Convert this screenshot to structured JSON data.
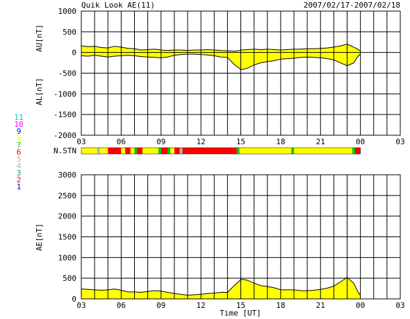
{
  "header": {
    "title": "Quik Look AE(11)",
    "date_range": "2007/02/17-2007/02/18"
  },
  "station_legend": [
    {
      "label": "11",
      "color": "#00c8c8"
    },
    {
      "label": "10",
      "color": "#ff00ff"
    },
    {
      "label": "9",
      "color": "#0000ff"
    },
    {
      "label": "8",
      "color": "#ffff00"
    },
    {
      "label": "7",
      "color": "#00c800"
    },
    {
      "label": "6",
      "color": "#ff0000"
    },
    {
      "label": "5",
      "color": "#b4b4b4"
    },
    {
      "label": "4",
      "color": "#b4b4b4"
    },
    {
      "label": "3",
      "color": "#00a0a0"
    },
    {
      "label": "2",
      "color": "#c80064"
    },
    {
      "label": "1",
      "color": "#0000c8"
    }
  ],
  "chart_data": [
    {
      "type": "area",
      "ylabel_upper": "AU[nT]",
      "ylabel_lower": "AL[nT]",
      "xlabel": "",
      "ylim": [
        -2000,
        1000
      ],
      "yticks": [
        "1000",
        "500",
        "0",
        "-500",
        "-1000",
        "-1500",
        "-2000"
      ],
      "xlim": [
        3,
        27
      ],
      "xticks": [
        "03",
        "06",
        "09",
        "12",
        "15",
        "18",
        "21",
        "00",
        "03"
      ],
      "grid": true,
      "x": [
        3.0,
        3.5,
        4.0,
        4.5,
        5.0,
        5.5,
        6.0,
        6.5,
        7.0,
        7.5,
        8.0,
        8.5,
        9.0,
        9.5,
        10.0,
        10.5,
        11.0,
        11.5,
        12.0,
        12.5,
        13.0,
        13.5,
        14.0,
        14.5,
        14.8,
        15.0,
        15.5,
        16.0,
        16.5,
        17.0,
        17.5,
        18.0,
        18.5,
        19.0,
        19.5,
        20.0,
        20.5,
        21.0,
        21.5,
        22.0,
        22.5,
        23.0,
        23.5,
        23.8,
        24.0
      ],
      "series": [
        {
          "values": [
            160,
            140,
            150,
            120,
            110,
            150,
            130,
            100,
            90,
            60,
            70,
            80,
            60,
            50,
            60,
            60,
            50,
            60,
            60,
            70,
            60,
            50,
            40,
            30,
            40,
            60,
            70,
            80,
            70,
            80,
            70,
            60,
            70,
            80,
            80,
            90,
            90,
            100,
            110,
            130,
            160,
            200,
            130,
            80,
            40
          ]
        },
        {
          "values": [
            -80,
            -90,
            -70,
            -90,
            -110,
            -90,
            -80,
            -70,
            -80,
            -100,
            -110,
            -120,
            -130,
            -110,
            -70,
            -50,
            -40,
            -40,
            -50,
            -60,
            -80,
            -110,
            -120,
            -290,
            -360,
            -420,
            -380,
            -300,
            -250,
            -220,
            -200,
            -160,
            -150,
            -140,
            -120,
            -110,
            -120,
            -130,
            -150,
            -180,
            -250,
            -320,
            -250,
            -100,
            -40
          ]
        }
      ]
    },
    {
      "type": "area",
      "ylabel": "AE[nT]",
      "xlabel": "Time [UT]",
      "ylim": [
        0,
        3000
      ],
      "yticks": [
        "3000",
        "2500",
        "2000",
        "1500",
        "1000",
        "500",
        "0"
      ],
      "xlim": [
        3,
        27
      ],
      "xticks": [
        "03",
        "06",
        "09",
        "12",
        "15",
        "18",
        "21",
        "00",
        "03"
      ],
      "grid": true,
      "x": [
        3.0,
        3.5,
        4.0,
        4.5,
        5.0,
        5.5,
        6.0,
        6.5,
        7.0,
        7.5,
        8.0,
        8.5,
        9.0,
        9.5,
        10.0,
        10.5,
        11.0,
        11.5,
        12.0,
        12.5,
        13.0,
        13.5,
        14.0,
        14.5,
        14.8,
        15.0,
        15.5,
        16.0,
        16.5,
        17.0,
        17.5,
        18.0,
        18.5,
        19.0,
        19.5,
        20.0,
        20.5,
        21.0,
        21.5,
        22.0,
        22.5,
        23.0,
        23.5,
        23.8,
        24.0
      ],
      "series": [
        {
          "values": [
            240,
            230,
            220,
            210,
            220,
            240,
            210,
            170,
            170,
            160,
            180,
            200,
            190,
            160,
            130,
            110,
            90,
            100,
            110,
            130,
            140,
            160,
            160,
            320,
            400,
            480,
            450,
            380,
            320,
            300,
            270,
            220,
            220,
            220,
            200,
            200,
            210,
            230,
            260,
            310,
            410,
            520,
            380,
            180,
            80
          ]
        }
      ]
    }
  ],
  "station_strip": {
    "label": "N.STN",
    "segments": [
      {
        "from": 3.0,
        "to": 4.2,
        "color": "#ffff00"
      },
      {
        "from": 4.2,
        "to": 4.4,
        "color": "#b4b4b4"
      },
      {
        "from": 4.4,
        "to": 5.0,
        "color": "#ffff00"
      },
      {
        "from": 5.0,
        "to": 6.0,
        "color": "#ff0000"
      },
      {
        "from": 6.0,
        "to": 6.3,
        "color": "#ffff00"
      },
      {
        "from": 6.3,
        "to": 6.7,
        "color": "#ff0000"
      },
      {
        "from": 6.7,
        "to": 7.0,
        "color": "#ffff00"
      },
      {
        "from": 7.0,
        "to": 7.2,
        "color": "#00c800"
      },
      {
        "from": 7.2,
        "to": 7.6,
        "color": "#ff0000"
      },
      {
        "from": 7.6,
        "to": 8.8,
        "color": "#ffff00"
      },
      {
        "from": 8.8,
        "to": 9.0,
        "color": "#00c800"
      },
      {
        "from": 9.0,
        "to": 9.5,
        "color": "#ff0000"
      },
      {
        "from": 9.5,
        "to": 9.7,
        "color": "#00c800"
      },
      {
        "from": 9.7,
        "to": 10.0,
        "color": "#ffff00"
      },
      {
        "from": 10.0,
        "to": 10.4,
        "color": "#ff0000"
      },
      {
        "from": 10.4,
        "to": 10.6,
        "color": "#b4b4b4"
      },
      {
        "from": 10.6,
        "to": 14.7,
        "color": "#ff0000"
      },
      {
        "from": 14.7,
        "to": 14.9,
        "color": "#00c800"
      },
      {
        "from": 14.9,
        "to": 18.8,
        "color": "#ffff00"
      },
      {
        "from": 18.8,
        "to": 19.0,
        "color": "#00c800"
      },
      {
        "from": 19.0,
        "to": 23.4,
        "color": "#ffff00"
      },
      {
        "from": 23.4,
        "to": 23.6,
        "color": "#00c800"
      },
      {
        "from": 23.6,
        "to": 24.0,
        "color": "#ff0000"
      }
    ]
  },
  "colors": {
    "fill_primary": "#ffff00",
    "fill_secondary": "#ff0000",
    "grid": "#000000"
  }
}
